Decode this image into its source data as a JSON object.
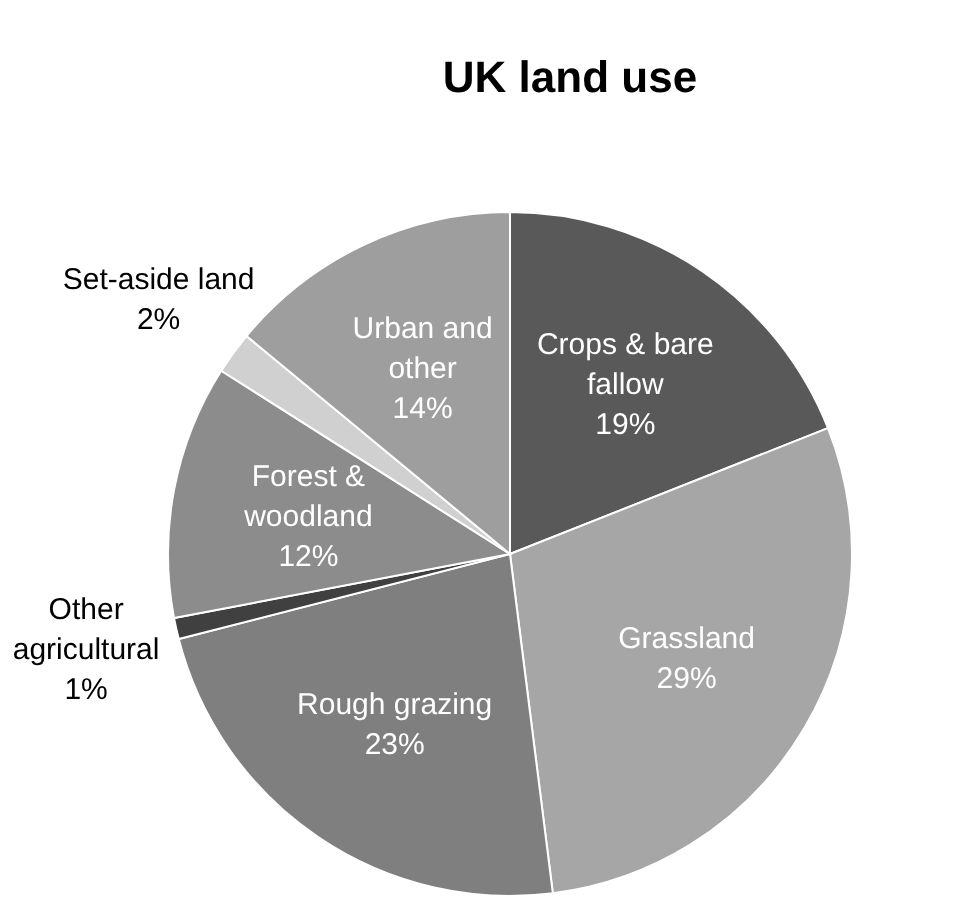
{
  "chart_data": {
    "type": "pie",
    "title": "UK land use",
    "categories": [
      "Crops & bare fallow",
      "Grassland",
      "Rough grazing",
      "Other agricultural",
      "Forest & woodland",
      "Set-aside land",
      "Urban and other"
    ],
    "values": [
      19,
      29,
      23,
      1,
      12,
      2,
      14
    ],
    "value_labels": [
      "19%",
      "29%",
      "23%",
      "1%",
      "12%",
      "2%",
      "14%"
    ],
    "colors": [
      "#595959",
      "#a6a6a6",
      "#7f7f7f",
      "#404040",
      "#8c8c8c",
      "#d0d0d0",
      "#9e9e9e"
    ],
    "legend": false
  }
}
